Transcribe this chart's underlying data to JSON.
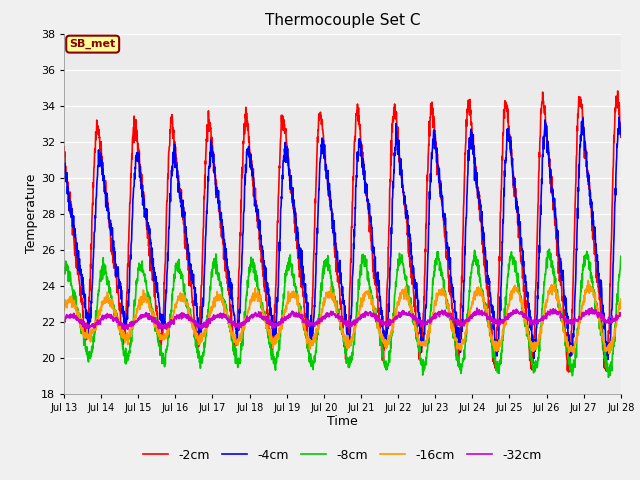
{
  "title": "Thermocouple Set C",
  "xlabel": "Time",
  "ylabel": "Temperature",
  "ylim": [
    18,
    38
  ],
  "xlim": [
    0,
    15
  ],
  "annotation": "SB_met",
  "fig_bg_color": "#f0f0f0",
  "plot_bg_color": "#ebebeb",
  "grid_color": "#ffffff",
  "series": [
    {
      "label": "-2cm",
      "color": "#ff0000",
      "lw": 1.2
    },
    {
      "label": "-4cm",
      "color": "#0000ff",
      "lw": 1.2
    },
    {
      "label": "-8cm",
      "color": "#00cc00",
      "lw": 1.2
    },
    {
      "label": "-16cm",
      "color": "#ff9900",
      "lw": 1.2
    },
    {
      "label": "-32cm",
      "color": "#cc00cc",
      "lw": 1.2
    }
  ],
  "xtick_labels": [
    "Jul 13",
    "Jul 14",
    "Jul 15",
    "Jul 16",
    "Jul 17",
    "Jul 18",
    "Jul 19",
    "Jul 20",
    "Jul 21",
    "Jul 22",
    "Jul 23",
    "Jul 24",
    "Jul 25",
    "Jul 26",
    "Jul 27",
    "Jul 28"
  ],
  "ytick_vals": [
    18,
    20,
    22,
    24,
    26,
    28,
    30,
    32,
    34,
    36,
    38
  ]
}
